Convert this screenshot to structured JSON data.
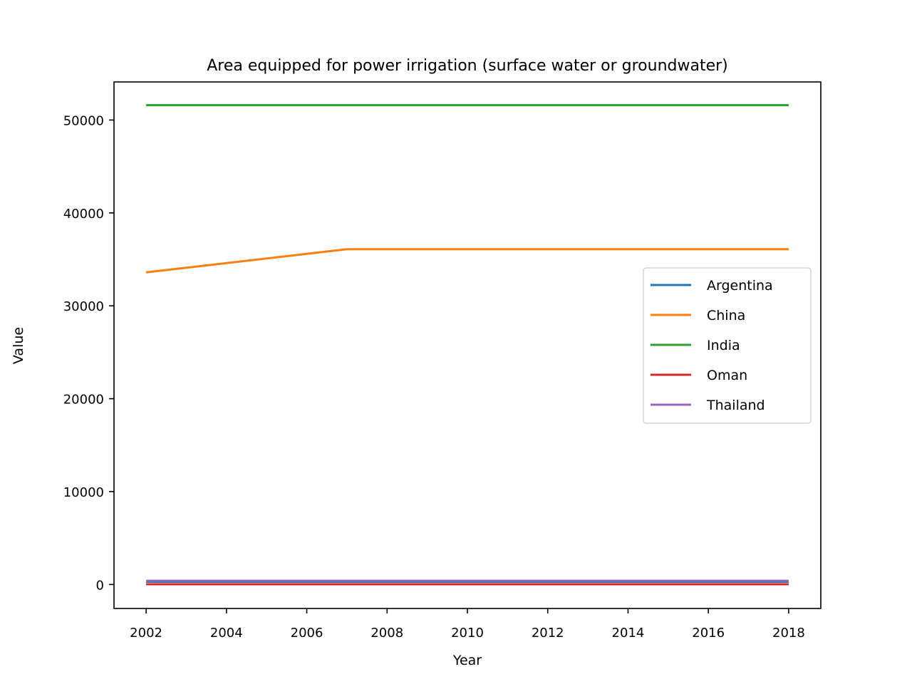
{
  "chart_data": {
    "type": "line",
    "title": "Area equipped for power irrigation (surface water or groundwater)",
    "xlabel": "Year",
    "ylabel": "Value",
    "x": [
      2002,
      2007,
      2018
    ],
    "xlim": [
      2001.2,
      2018.8
    ],
    "ylim": [
      -2580,
      54100
    ],
    "xticks": [
      2002,
      2004,
      2006,
      2008,
      2010,
      2012,
      2014,
      2016,
      2018
    ],
    "yticks": [
      0,
      10000,
      20000,
      30000,
      40000,
      50000
    ],
    "grid": false,
    "legend_position": "center-right",
    "series": [
      {
        "name": "Argentina",
        "color": "#1f77b4",
        "values": [
          300,
          300,
          300
        ]
      },
      {
        "name": "China",
        "color": "#ff7f0e",
        "values": [
          33600,
          36100,
          36100
        ]
      },
      {
        "name": "India",
        "color": "#2ca02c",
        "values": [
          51600,
          51600,
          51600
        ]
      },
      {
        "name": "Oman",
        "color": "#d62728",
        "values": [
          30,
          30,
          30
        ]
      },
      {
        "name": "Thailand",
        "color": "#9467bd",
        "values": [
          400,
          400,
          400
        ]
      }
    ]
  }
}
